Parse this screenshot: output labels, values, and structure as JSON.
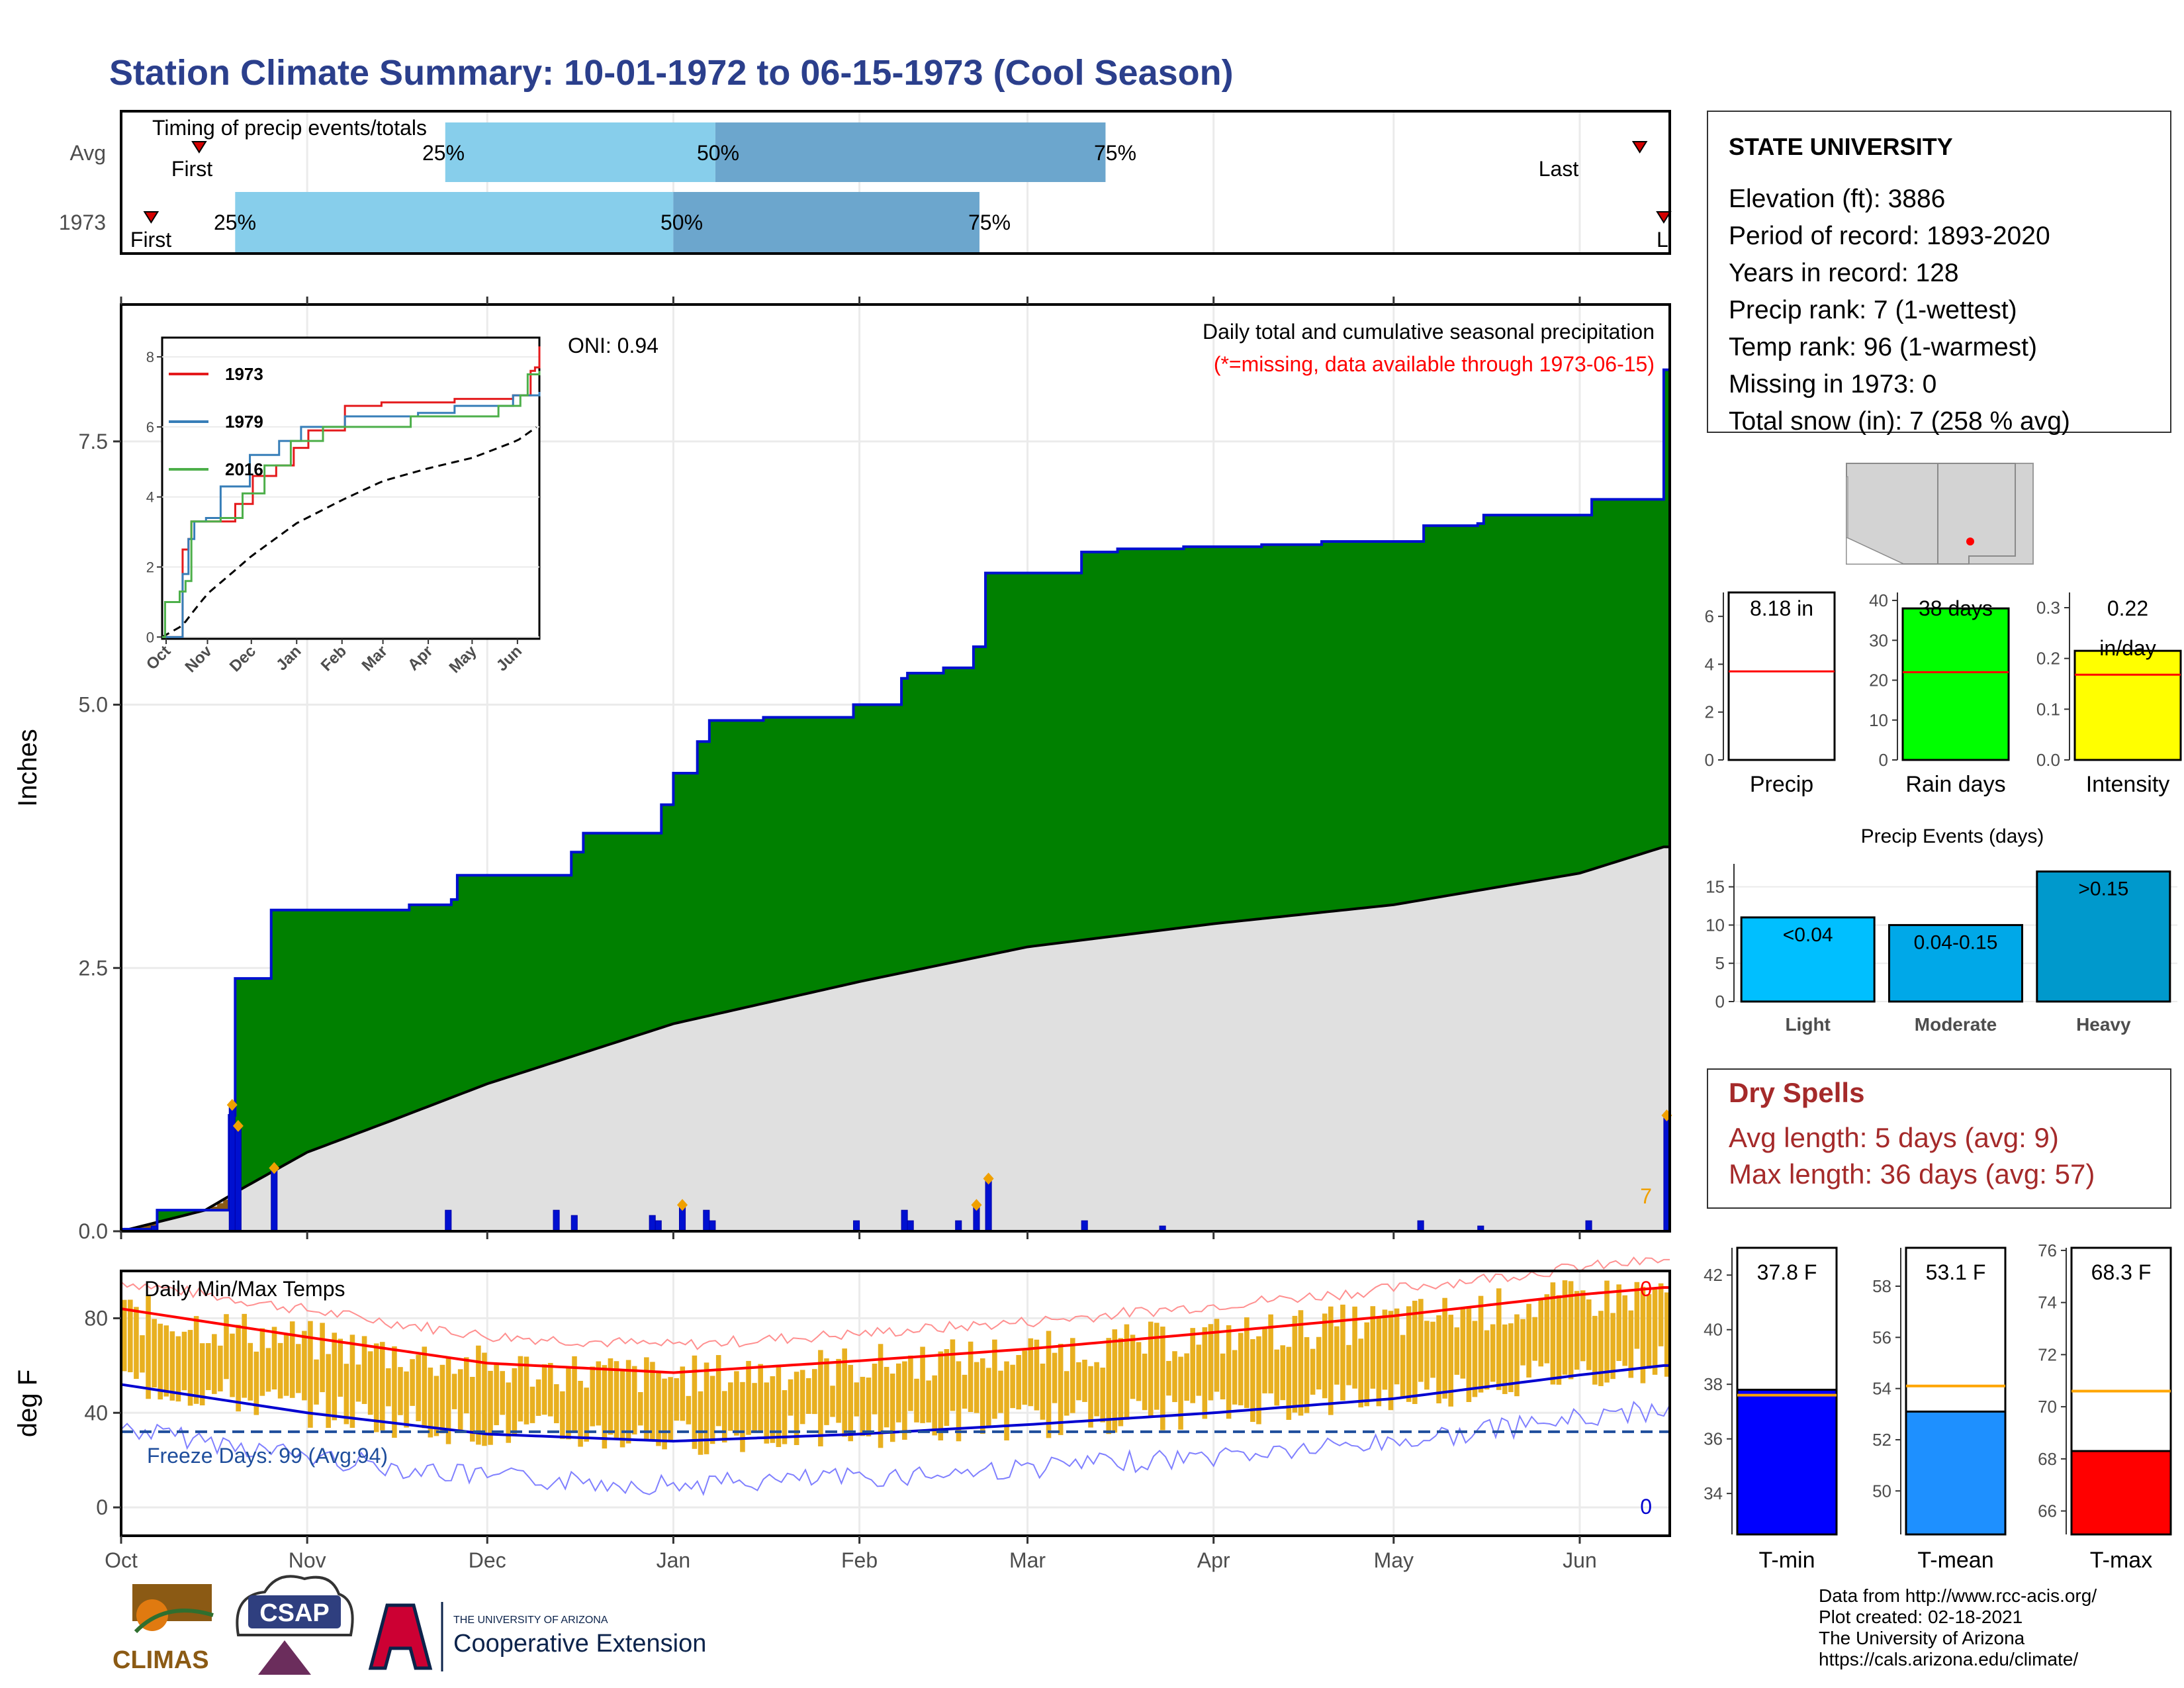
{
  "title": "Station Climate Summary: 10-01-1972 to 06-15-1973 (Cool Season)",
  "colors": {
    "title": "#2b3f8c",
    "q_light": "#87ceeb",
    "q_dark": "#6ca6cd",
    "marker": "#d40000",
    "green": "#008000",
    "grey_fill": "#e0e0e0",
    "brown": "#8b5a14",
    "blue_line": "#0010d0",
    "orange": "#f0a000",
    "tmax_line": "#ff0000",
    "tmin_line": "#0000d0",
    "temp_bar": "#e8b020",
    "freeze": "#1f4e9c",
    "dry_title": "#a52a2a",
    "precip_red": "#ff0000",
    "rain_green": "#00ff00",
    "intensity_yellow": "#ffff00",
    "light_blue": "#00bfff",
    "mod_blue": "#00a8e8",
    "heavy_blue": "#0099cc",
    "tmin_box": "#0000ff",
    "tmean_box": "#1e90ff",
    "tmax_box": "#ff0000",
    "avg_orange": "#ffa500"
  },
  "timing": {
    "label": "Timing of precip events/totals",
    "rows": [
      {
        "name": "Avg",
        "first_label": "First",
        "last_label": "Last",
        "first": "1972-10-14",
        "last": "1973-06-11",
        "q25": "1972-11-24",
        "q50": "1973-01-08",
        "q75": "1973-03-14",
        "l25": "25%",
        "l50": "50%",
        "l75": "75%"
      },
      {
        "name": "1973",
        "first_label": "First",
        "last_label": "Last",
        "first": "1972-10-06",
        "last": "1973-06-15",
        "q25": "1972-10-20",
        "q50": "1973-01-01",
        "q75": "1973-02-21",
        "l25": "25%",
        "l50": "50%",
        "l75": "75%"
      }
    ]
  },
  "precip_panel": {
    "ylabel": "Inches",
    "oni": "ONI: 0.94",
    "header": "Daily total and cumulative seasonal precipitation",
    "missing_note": "(*=missing, data available through 1973-06-15)",
    "corner_num": "7",
    "yticks": [
      "0.0",
      "2.5",
      "5.0",
      "7.5"
    ],
    "ytick_values": [
      0,
      2.5,
      5,
      7.5
    ],
    "ylim": [
      0,
      8.8
    ]
  },
  "temp_panel": {
    "title": "Daily Min/Max Temps",
    "ylabel": "deg F",
    "freeze": "Freeze Days: 99 (Avg:94)",
    "top_count": "0",
    "bottom_count": "0",
    "yticks": [
      "0",
      "40",
      "80"
    ],
    "ytick_values": [
      0,
      40,
      80
    ],
    "ylim": [
      -12,
      100
    ]
  },
  "month_labels": [
    "Oct",
    "Nov",
    "Dec",
    "Jan",
    "Feb",
    "Mar",
    "Apr",
    "May",
    "Jun"
  ],
  "month_days": [
    0,
    31,
    61,
    92,
    123,
    151,
    182,
    212,
    243
  ],
  "season_days": 258,
  "inset": {
    "yticks": [
      "0",
      "2",
      "4",
      "6",
      "8"
    ],
    "ytick_values": [
      0,
      2,
      4,
      6,
      8
    ],
    "xticks": [
      "Oct",
      "Nov",
      "Dec",
      "Jan",
      "Feb",
      "Mar",
      "Apr",
      "May",
      "Jun"
    ],
    "legend": [
      {
        "name": "1973",
        "color": "#e41a1c"
      },
      {
        "name": "1979",
        "color": "#377eb8"
      },
      {
        "name": "2016",
        "color": "#4daf4a"
      }
    ]
  },
  "station": {
    "name": "STATE UNIVERSITY",
    "lines": [
      "Elevation (ft): 3886",
      "Period of record: 1893-2020",
      "Years in record: 128",
      "Precip rank: 7 (1-wettest)",
      "Temp rank: 96 (1-warmest)",
      "Missing in 1973: 0",
      "Total snow (in): 7 (258 % avg)"
    ]
  },
  "small_bars": [
    {
      "name": "Precip",
      "value_label": "8.18 in",
      "value": 8.18,
      "avg": 3.7,
      "ylim": [
        0,
        7.0
      ],
      "yticks": [
        "0",
        "2",
        "4",
        "6"
      ],
      "ytick_values": [
        0,
        2,
        4,
        6
      ],
      "fill": "#ffffff"
    },
    {
      "name": "Rain days",
      "value_label": "38 days",
      "value": 38,
      "avg": 22,
      "ylim": [
        0,
        42
      ],
      "yticks": [
        "0",
        "10",
        "20",
        "30",
        "40"
      ],
      "ytick_values": [
        0,
        10,
        20,
        30,
        40
      ],
      "fill": "#00ff00"
    },
    {
      "name": "Intensity",
      "value_label": "0.22",
      "value_label2": "in/day",
      "value": 0.215,
      "avg": 0.168,
      "ylim": [
        0,
        0.33
      ],
      "yticks": [
        "0.0",
        "0.1",
        "0.2",
        "0.3"
      ],
      "ytick_values": [
        0,
        0.1,
        0.2,
        0.3
      ],
      "fill": "#ffff00"
    }
  ],
  "events": {
    "title": "Precip Events (days)",
    "yticks": [
      "0",
      "5",
      "10",
      "15"
    ],
    "ytick_values": [
      0,
      5,
      10,
      15
    ],
    "ylim": [
      0,
      18
    ],
    "bars": [
      {
        "name": "Light",
        "label": "<0.04",
        "value": 11,
        "fill": "#00bfff"
      },
      {
        "name": "Moderate",
        "label": "0.04-0.15",
        "value": 10,
        "fill": "#00a8e8"
      },
      {
        "name": "Heavy",
        "label": ">0.15",
        "value": 17,
        "fill": "#0099cc"
      }
    ]
  },
  "dry_spells": {
    "title": "Dry Spells",
    "avg": "Avg length: 5 days (avg: 9)",
    "max": "Max length: 36 days (avg: 57)"
  },
  "temp_bars": [
    {
      "name": "T-min",
      "value_label": "37.8 F",
      "value": 37.8,
      "avg": 37.6,
      "ylim": [
        32.5,
        43.0
      ],
      "yticks": [
        "34",
        "36",
        "38",
        "40",
        "42"
      ],
      "ytick_values": [
        34,
        36,
        38,
        40,
        42
      ],
      "fill": "#0000ff"
    },
    {
      "name": "T-mean",
      "value_label": "53.1 F",
      "value": 53.1,
      "avg": 54.1,
      "ylim": [
        48.3,
        59.5
      ],
      "yticks": [
        "50",
        "52",
        "54",
        "56",
        "58"
      ],
      "ytick_values": [
        50,
        52,
        54,
        56,
        58
      ],
      "fill": "#1e90ff"
    },
    {
      "name": "T-max",
      "value_label": "68.3 F",
      "value": 68.3,
      "avg": 70.6,
      "ylim": [
        65.1,
        76.1
      ],
      "yticks": [
        "66",
        "68",
        "70",
        "72",
        "74",
        "76"
      ],
      "ytick_values": [
        66,
        68,
        70,
        72,
        74,
        76
      ],
      "fill": "#ff0000"
    }
  ],
  "footer": {
    "lines": [
      "Data from http://www.rcc-acis.org/",
      "Plot created: 02-18-2021",
      "The University of Arizona",
      "https://cals.arizona.edu/climate/"
    ],
    "climas": "CLIMAS",
    "csap": "CSAP",
    "ua_small": "THE UNIVERSITY OF ARIZONA",
    "ua_big": "Cooperative Extension"
  },
  "chart_data": [
    {
      "type": "area",
      "title": "Daily total and cumulative seasonal precipitation",
      "ylabel": "Inches",
      "ylim": [
        0,
        8.8
      ],
      "cumulative_1973_steps": [
        {
          "day": 0,
          "value": 0.02
        },
        {
          "day": 6,
          "value": 0.2
        },
        {
          "day": 18,
          "value": 1.1
        },
        {
          "day": 19,
          "value": 2.4
        },
        {
          "day": 25,
          "value": 3.05
        },
        {
          "day": 48,
          "value": 3.1
        },
        {
          "day": 55,
          "value": 3.15
        },
        {
          "day": 56,
          "value": 3.38
        },
        {
          "day": 74,
          "value": 3.38
        },
        {
          "day": 75,
          "value": 3.6
        },
        {
          "day": 77,
          "value": 3.78
        },
        {
          "day": 89,
          "value": 3.78
        },
        {
          "day": 90,
          "value": 4.05
        },
        {
          "day": 92,
          "value": 4.35
        },
        {
          "day": 96,
          "value": 4.65
        },
        {
          "day": 98,
          "value": 4.85
        },
        {
          "day": 107,
          "value": 4.88
        },
        {
          "day": 122,
          "value": 5.0
        },
        {
          "day": 130,
          "value": 5.25
        },
        {
          "day": 131,
          "value": 5.3
        },
        {
          "day": 137,
          "value": 5.35
        },
        {
          "day": 142,
          "value": 5.55
        },
        {
          "day": 144,
          "value": 6.25
        },
        {
          "day": 160,
          "value": 6.45
        },
        {
          "day": 166,
          "value": 6.48
        },
        {
          "day": 177,
          "value": 6.5
        },
        {
          "day": 190,
          "value": 6.52
        },
        {
          "day": 200,
          "value": 6.55
        },
        {
          "day": 217,
          "value": 6.7
        },
        {
          "day": 226,
          "value": 6.72
        },
        {
          "day": 227,
          "value": 6.8
        },
        {
          "day": 244,
          "value": 6.8
        },
        {
          "day": 245,
          "value": 6.95
        },
        {
          "day": 256,
          "value": 6.95
        },
        {
          "day": 257,
          "value": 8.18
        }
      ],
      "average_cumulative": [
        {
          "day": 0,
          "value": 0
        },
        {
          "day": 14,
          "value": 0.2
        },
        {
          "day": 20,
          "value": 0.4
        },
        {
          "day": 31,
          "value": 0.75
        },
        {
          "day": 45,
          "value": 1.05
        },
        {
          "day": 61,
          "value": 1.4
        },
        {
          "day": 92,
          "value": 1.97
        },
        {
          "day": 123,
          "value": 2.37
        },
        {
          "day": 151,
          "value": 2.7
        },
        {
          "day": 182,
          "value": 2.92
        },
        {
          "day": 212,
          "value": 3.1
        },
        {
          "day": 243,
          "value": 3.4
        },
        {
          "day": 257,
          "value": 3.65
        }
      ],
      "daily_1973": [
        {
          "day": 5,
          "value": 0.05
        },
        {
          "day": 18,
          "value": 1.2
        },
        {
          "day": 19,
          "value": 1.0
        },
        {
          "day": 25,
          "value": 0.6
        },
        {
          "day": 54,
          "value": 0.2
        },
        {
          "day": 72,
          "value": 0.2
        },
        {
          "day": 75,
          "value": 0.15
        },
        {
          "day": 88,
          "value": 0.15
        },
        {
          "day": 89,
          "value": 0.1
        },
        {
          "day": 93,
          "value": 0.25
        },
        {
          "day": 97,
          "value": 0.2
        },
        {
          "day": 98,
          "value": 0.1
        },
        {
          "day": 122,
          "value": 0.1
        },
        {
          "day": 130,
          "value": 0.2
        },
        {
          "day": 131,
          "value": 0.1
        },
        {
          "day": 139,
          "value": 0.1
        },
        {
          "day": 142,
          "value": 0.25
        },
        {
          "day": 144,
          "value": 0.5
        },
        {
          "day": 160,
          "value": 0.1
        },
        {
          "day": 173,
          "value": 0.05
        },
        {
          "day": 216,
          "value": 0.1
        },
        {
          "day": 226,
          "value": 0.05
        },
        {
          "day": 244,
          "value": 0.1
        },
        {
          "day": 257,
          "value": 1.1
        }
      ]
    },
    {
      "type": "line",
      "title": "Daily Min/Max Temps",
      "ylabel": "deg F",
      "ylim": [
        -12,
        100
      ],
      "avg_tmax": [
        {
          "day": 0,
          "value": 84
        },
        {
          "day": 31,
          "value": 72
        },
        {
          "day": 61,
          "value": 61
        },
        {
          "day": 92,
          "value": 57
        },
        {
          "day": 123,
          "value": 62
        },
        {
          "day": 151,
          "value": 67
        },
        {
          "day": 182,
          "value": 74
        },
        {
          "day": 212,
          "value": 81
        },
        {
          "day": 243,
          "value": 90
        },
        {
          "day": 257,
          "value": 93
        }
      ],
      "avg_tmin": [
        {
          "day": 0,
          "value": 52
        },
        {
          "day": 31,
          "value": 40
        },
        {
          "day": 61,
          "value": 31
        },
        {
          "day": 92,
          "value": 28
        },
        {
          "day": 123,
          "value": 31
        },
        {
          "day": 151,
          "value": 35
        },
        {
          "day": 182,
          "value": 40
        },
        {
          "day": 212,
          "value": 46
        },
        {
          "day": 243,
          "value": 56
        },
        {
          "day": 257,
          "value": 60
        }
      ],
      "freeze_line": 32
    }
  ]
}
